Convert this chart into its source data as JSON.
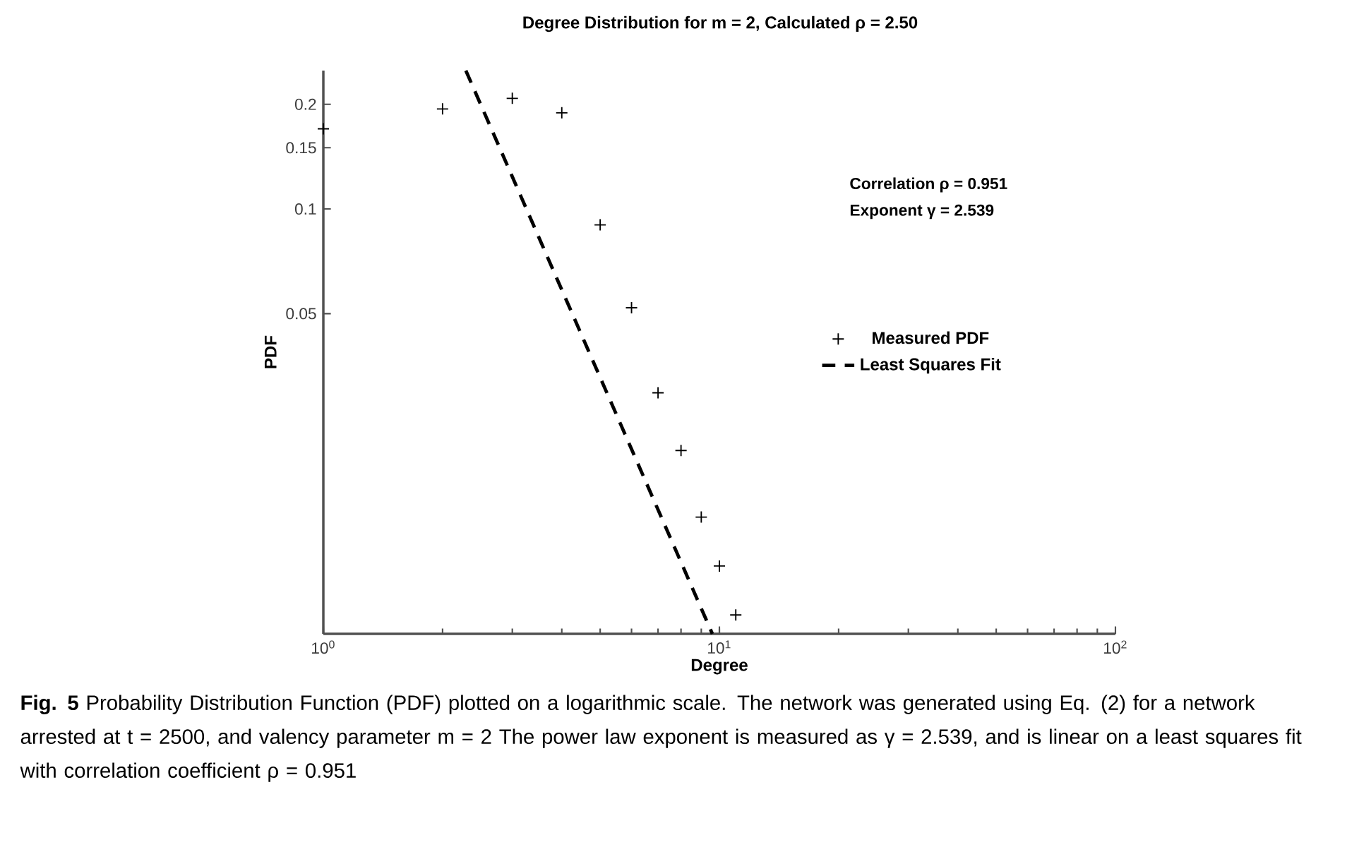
{
  "chart_data": {
    "type": "scatter",
    "title": "Degree Distribution for m = 2, Calculated ρ = 2.50",
    "xlabel": "Degree",
    "ylabel": "PDF",
    "annotations": [
      "Correlation ρ = 0.951",
      "Exponent γ = 2.539",
      "**Fig. 5** Probability Distribution Function (PDF) plotted on a logarithmic scale. The network was generated using Eq. (2) for a network arrested at t = 2500, and valency parameter m = 2 The power law exponent is measured as γ = 2.539, and is linear on a least squares fit with correlation coefficient ρ = 0.951"
    ],
    "log": "xy",
    "xlim": [
      1,
      100
    ],
    "ylim": [
      0.006,
      0.25
    ],
    "xticks": [
      {
        "value": 1,
        "label": "10$^{0}$"
      },
      {
        "value": 10,
        "label": "10$^{1}$"
      },
      {
        "value": 100,
        "label": "10$^{2}$"
      }
    ],
    "yticks": [
      0.05,
      0.1,
      0.15,
      0.2
    ],
    "legend": "right",
    "series": [
      {
        "name": "Measured PDF",
        "color": "#000000",
        "marker": "cross",
        "x": [
          1,
          2,
          3,
          4,
          5,
          6,
          7,
          8,
          9,
          10,
          11
        ],
        "values": [
          0.17,
          0.194,
          0.208,
          0.189,
          0.09,
          0.052,
          0.0296,
          0.0202,
          0.013,
          0.0094,
          0.0068
        ]
      },
      {
        "name": "Least Squares Fit",
        "type": "line",
        "color": "#000000",
        "marker": "none",
        "line_style": "dashed",
        "x": [
          2.29,
          9.6
        ],
        "values": [
          0.25,
          0.006
        ]
      }
    ]
  }
}
